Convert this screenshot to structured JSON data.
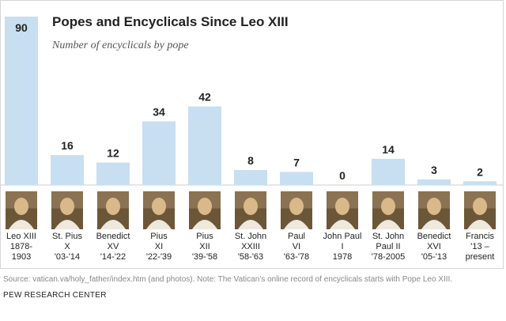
{
  "chart_data": {
    "type": "bar",
    "title": "Popes and Encyclicals Since Leo XIII",
    "subtitle": "Number of encyclicals by pope",
    "categories": [
      [
        "Leo XIII",
        "1878-",
        "1903"
      ],
      [
        "St. Pius",
        "X",
        "'03-'14"
      ],
      [
        "Benedict",
        "XV",
        "'14-'22"
      ],
      [
        "Pius",
        "XI",
        "'22-'39"
      ],
      [
        "Pius",
        "XII",
        "'39-'58"
      ],
      [
        "St. John",
        "XXIII",
        "'58-'63"
      ],
      [
        "Paul",
        "VI",
        "'63-'78"
      ],
      [
        "John Paul",
        "I",
        "1978"
      ],
      [
        "St. John",
        "Paul II",
        "'78-2005"
      ],
      [
        "Benedict",
        "XVI",
        "'05-'13"
      ],
      [
        "Francis",
        "'13 –",
        "present"
      ]
    ],
    "values": [
      90,
      16,
      12,
      34,
      42,
      8,
      7,
      0,
      14,
      3,
      2
    ],
    "ylim": [
      0,
      90
    ],
    "colors": {
      "bar": "#c7dff0"
    },
    "portraits": [
      "pope-portrait-icon",
      "pope-portrait-icon",
      "pope-portrait-icon",
      "pope-portrait-icon",
      "pope-portrait-icon",
      "pope-portrait-icon",
      "pope-portrait-icon",
      "pope-portrait-icon",
      "pope-portrait-icon",
      "pope-portrait-icon",
      "pope-portrait-icon"
    ]
  },
  "footer": {
    "source": "Source: vatican.va/holy_father/index.htm (and photos). Note: The Vatican’s online record of encyclicals starts with Pope Leo XIII.",
    "credit": "PEW RESEARCH CENTER"
  }
}
